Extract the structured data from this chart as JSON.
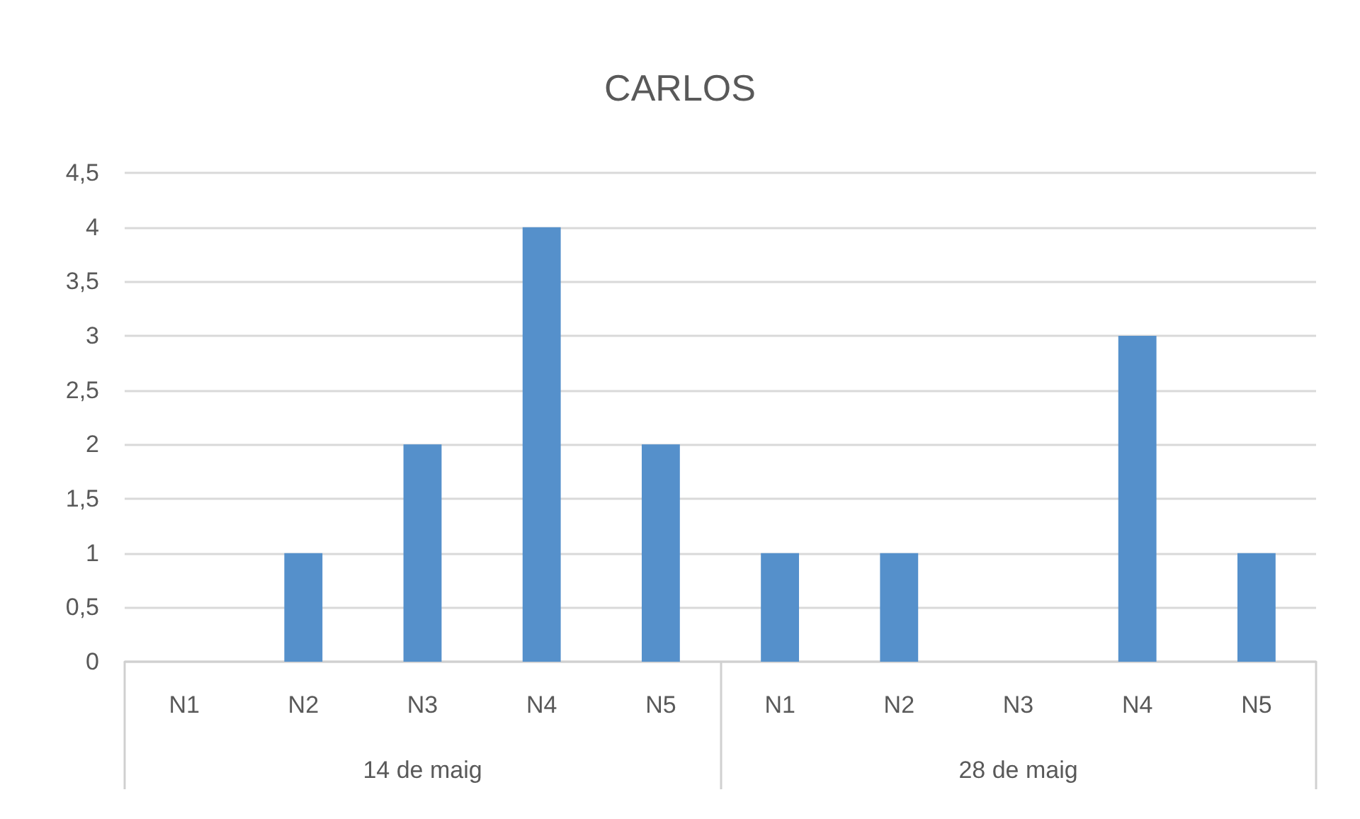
{
  "chart_data": {
    "type": "bar",
    "title": "CARLOS",
    "categories": [
      "N1",
      "N2",
      "N3",
      "N4",
      "N5",
      "N1",
      "N2",
      "N3",
      "N4",
      "N5"
    ],
    "values": [
      0,
      1,
      2,
      4,
      2,
      1,
      1,
      0,
      3,
      1
    ],
    "color": "#5590cb",
    "ylim": [
      0,
      4.5
    ],
    "yticks": [
      0,
      {
        "value": 0.5,
        "label": "0,5"
      },
      1,
      {
        "value": 1.5,
        "label": "1,5"
      },
      2,
      {
        "value": 2.5,
        "label": "2,5"
      },
      3,
      {
        "value": 3.5,
        "label": "3,5"
      },
      4,
      {
        "value": 4.5,
        "label": "4,5"
      }
    ],
    "grid": "y",
    "annotations": [
      "14 de maig",
      "28 de maig"
    ]
  }
}
